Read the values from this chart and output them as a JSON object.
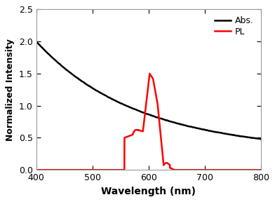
{
  "title": "",
  "xlabel": "Wavelength (nm)",
  "ylabel": "Normalized Intensity",
  "xlim": [
    400,
    800
  ],
  "ylim": [
    0.0,
    2.5
  ],
  "yticks": [
    0.0,
    0.5,
    1.0,
    1.5,
    2.0,
    2.5
  ],
  "xticks": [
    400,
    500,
    600,
    700,
    800
  ],
  "abs_color": "#000000",
  "pl_color": "#ff0000",
  "legend_labels": [
    "Abs.",
    "PL"
  ],
  "background_color": "#ffffff",
  "line_width": 1.5,
  "border_color": "#aaaaaa"
}
